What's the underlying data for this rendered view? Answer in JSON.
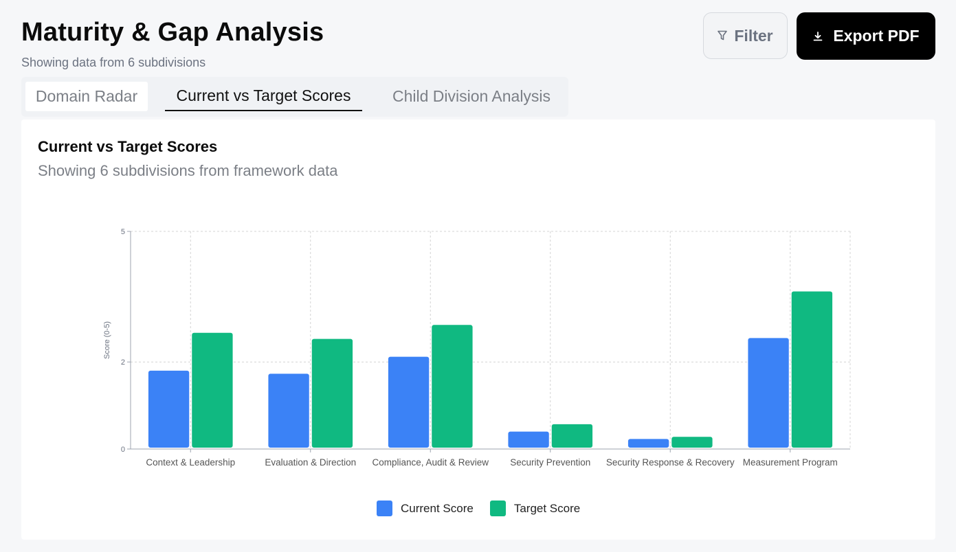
{
  "header": {
    "title": "Maturity & Gap Analysis",
    "subtitle": "Showing data from 6 subdivisions",
    "filter_label": "Filter",
    "export_label": "Export PDF",
    "filter_icon": "filter-funnel-icon",
    "export_icon": "download-icon"
  },
  "tabs": [
    {
      "label": "Domain Radar",
      "active": false
    },
    {
      "label": "Current vs Target Scores",
      "active": true
    },
    {
      "label": "Child Division Analysis",
      "active": false
    }
  ],
  "card": {
    "title": "Current vs Target Scores",
    "subtitle": "Showing 6 subdivisions from framework data"
  },
  "chart_data": {
    "type": "bar",
    "categories": [
      "Context & Leadership",
      "Evaluation & Direction",
      "Compliance, Audit & Review",
      "Security Prevention",
      "Security Response & Recovery",
      "Measurement Program"
    ],
    "series": [
      {
        "name": "Current Score",
        "color": "#3b82f6",
        "values": [
          1.8,
          1.73,
          2.12,
          0.4,
          0.23,
          2.55
        ]
      },
      {
        "name": "Target Score",
        "color": "#10b981",
        "values": [
          2.67,
          2.53,
          2.85,
          0.57,
          0.28,
          3.62
        ]
      }
    ],
    "ylabel": "Score (0-5)",
    "yticks": [
      0,
      2,
      5
    ],
    "ylim": [
      0,
      5
    ],
    "grid": true,
    "legend": "bottom-center"
  }
}
